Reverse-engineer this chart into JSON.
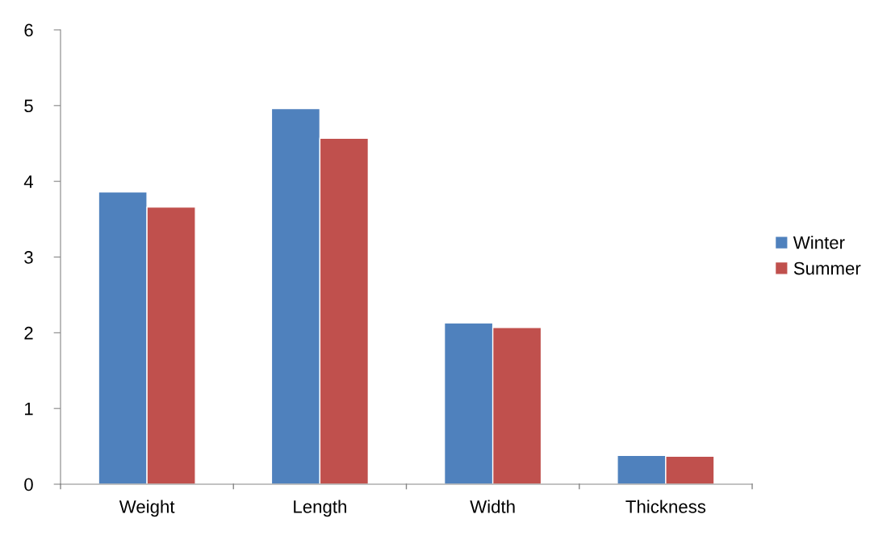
{
  "chart_data": {
    "type": "bar",
    "categories": [
      "Weight",
      "Length",
      "Width",
      "Thickness"
    ],
    "series": [
      {
        "name": "Winter",
        "color": "#4f81bd",
        "values": [
          3.86,
          4.96,
          2.13,
          0.38
        ]
      },
      {
        "name": "Summer",
        "color": "#c0504d",
        "values": [
          3.66,
          4.57,
          2.07,
          0.37
        ]
      }
    ],
    "ylim": [
      0,
      6
    ],
    "yticks": [
      0,
      1,
      2,
      3,
      4,
      5,
      6
    ],
    "grid": false,
    "legend": "right"
  }
}
